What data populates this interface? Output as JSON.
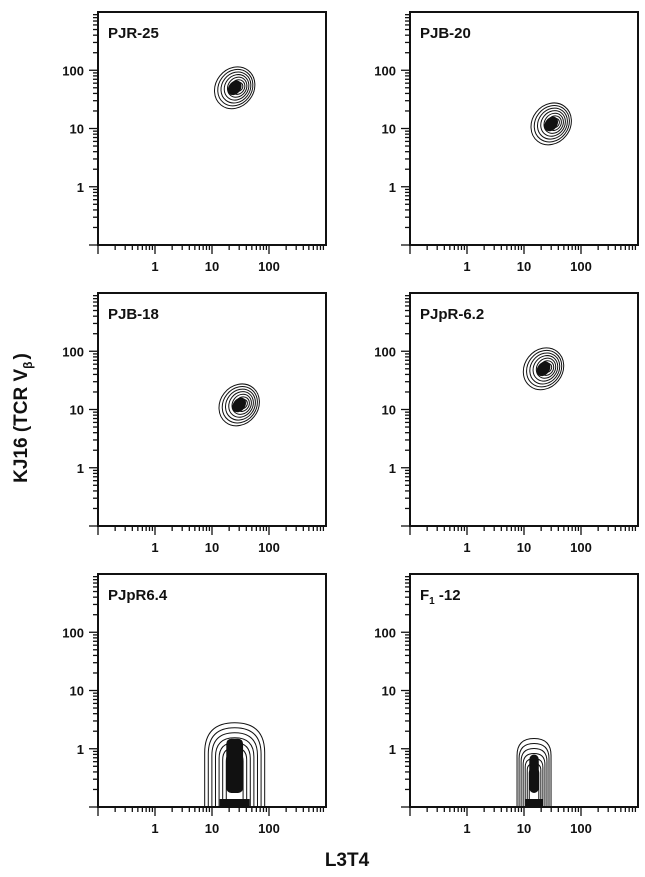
{
  "chart_data": [
    {
      "type": "contour",
      "title": "PJR-25",
      "xscale": "log",
      "yscale": "log",
      "xticks": [
        "1",
        "10",
        "100"
      ],
      "yticks": [
        "1",
        "10",
        "100"
      ],
      "population": {
        "x_center": 25,
        "y_center": 50,
        "shape": "compact oval"
      }
    },
    {
      "type": "contour",
      "title": "PJB-20",
      "xscale": "log",
      "yscale": "log",
      "xticks": [
        "1",
        "10",
        "100"
      ],
      "yticks": [
        "1",
        "10",
        "100"
      ],
      "population": {
        "x_center": 30,
        "y_center": 12,
        "shape": "compact oval"
      }
    },
    {
      "type": "contour",
      "title": "PJB-18",
      "xscale": "log",
      "yscale": "log",
      "xticks": [
        "1",
        "10",
        "100"
      ],
      "yticks": [
        "1",
        "10",
        "100"
      ],
      "population": {
        "x_center": 30,
        "y_center": 12,
        "shape": "compact oval"
      }
    },
    {
      "type": "contour",
      "title": "PJpR-6.2",
      "xscale": "log",
      "yscale": "log",
      "xticks": [
        "1",
        "10",
        "100"
      ],
      "yticks": [
        "1",
        "10",
        "100"
      ],
      "population": {
        "x_center": 22,
        "y_center": 50,
        "shape": "compact oval"
      }
    },
    {
      "type": "contour",
      "title": "PJpR6.4",
      "xscale": "log",
      "yscale": "log",
      "xticks": [
        "1",
        "10",
        "100"
      ],
      "yticks": [
        "1",
        "10",
        "100"
      ],
      "population": {
        "x_center": 25,
        "y_center": 0.6,
        "shape": "vertical spread near axis"
      }
    },
    {
      "type": "contour",
      "title": "F",
      "title_sub": "1",
      "title_rest": " -12",
      "xscale": "log",
      "yscale": "log",
      "xticks": [
        "1",
        "10",
        "100"
      ],
      "yticks": [
        "1",
        "10",
        "100"
      ],
      "population": {
        "x_center": 15,
        "y_center": 0.4,
        "shape": "narrow vertical spread near axis"
      }
    }
  ],
  "figure": {
    "ylabel": "KJ16 (TCR V",
    "ylabel_sub": "β",
    "ylabel_end": ")",
    "xlabel": "L3T4"
  }
}
